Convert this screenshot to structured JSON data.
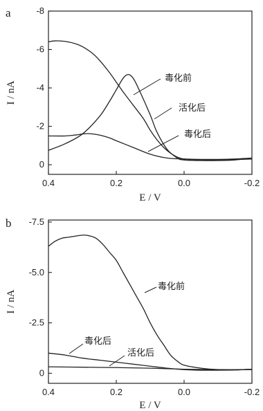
{
  "chart_data": [
    {
      "type": "line",
      "panel_label": "a",
      "xlabel": "E / V",
      "ylabel": "I / nA",
      "xlim": [
        0.4,
        -0.2
      ],
      "ylim": [
        0.5,
        -8
      ],
      "xticks": [
        0.4,
        0.2,
        0.0,
        -0.2
      ],
      "xtick_labels": [
        "0.4",
        "0.2",
        "0.0",
        "-0.2"
      ],
      "yticks": [
        -8,
        -6,
        -4,
        -2,
        0
      ],
      "ytick_labels": [
        "-8",
        "-6",
        "-4",
        "-2",
        "0"
      ],
      "series": [
        {
          "name": "毒化前",
          "x": [
            0.4,
            0.35,
            0.3,
            0.25,
            0.22,
            0.2,
            0.18,
            0.165,
            0.15,
            0.13,
            0.1,
            0.08,
            0.05,
            0.02,
            0.0,
            -0.05,
            -0.1,
            -0.15,
            -0.2
          ],
          "y": [
            -0.75,
            -1.1,
            -1.6,
            -2.5,
            -3.3,
            -3.9,
            -4.5,
            -4.7,
            -4.5,
            -3.8,
            -2.6,
            -1.7,
            -0.8,
            -0.35,
            -0.25,
            -0.22,
            -0.22,
            -0.25,
            -0.35
          ]
        },
        {
          "name": "活化后",
          "x": [
            0.4,
            0.38,
            0.35,
            0.32,
            0.3,
            0.27,
            0.25,
            0.22,
            0.2,
            0.18,
            0.15,
            0.12,
            0.1,
            0.08,
            0.06,
            0.04,
            0.02,
            0.0,
            -0.05,
            -0.1,
            -0.15,
            -0.2
          ],
          "y": [
            -6.4,
            -6.45,
            -6.42,
            -6.3,
            -6.15,
            -5.8,
            -5.45,
            -4.8,
            -4.3,
            -3.8,
            -3.1,
            -2.4,
            -1.8,
            -1.3,
            -0.9,
            -0.6,
            -0.4,
            -0.3,
            -0.25,
            -0.25,
            -0.27,
            -0.3
          ]
        },
        {
          "name": "毒化后",
          "x": [
            0.4,
            0.35,
            0.32,
            0.3,
            0.28,
            0.25,
            0.22,
            0.2,
            0.15,
            0.1,
            0.05,
            0.0,
            -0.05,
            -0.1,
            -0.15,
            -0.2
          ],
          "y": [
            -1.5,
            -1.5,
            -1.55,
            -1.6,
            -1.62,
            -1.55,
            -1.4,
            -1.25,
            -0.9,
            -0.55,
            -0.35,
            -0.3,
            -0.28,
            -0.28,
            -0.3,
            -0.35
          ]
        }
      ],
      "annotations": [
        "毒化前",
        "活化后",
        "毒化后"
      ]
    },
    {
      "type": "line",
      "panel_label": "b",
      "xlabel": "E / V",
      "ylabel": "I / nA",
      "xlim": [
        0.4,
        -0.2
      ],
      "ylim": [
        0.5,
        -7.6
      ],
      "xticks": [
        0.4,
        0.2,
        0.0,
        -0.2
      ],
      "xtick_labels": [
        "0.4",
        "0.2",
        "0.0",
        "-0.2"
      ],
      "yticks": [
        -7.5,
        -5.0,
        -2.5,
        0
      ],
      "ytick_labels": [
        "-7.5",
        "-5.0",
        "-2.5",
        "0"
      ],
      "series": [
        {
          "name": "毒化前",
          "x": [
            0.4,
            0.38,
            0.36,
            0.34,
            0.3,
            0.28,
            0.26,
            0.24,
            0.22,
            0.2,
            0.18,
            0.16,
            0.14,
            0.12,
            0.1,
            0.08,
            0.06,
            0.04,
            0.02,
            0.0,
            -0.05,
            -0.1,
            -0.15,
            -0.2
          ],
          "y": [
            -6.3,
            -6.55,
            -6.7,
            -6.75,
            -6.85,
            -6.82,
            -6.7,
            -6.4,
            -6.0,
            -5.6,
            -5.0,
            -4.4,
            -3.8,
            -3.2,
            -2.5,
            -1.9,
            -1.4,
            -0.9,
            -0.6,
            -0.4,
            -0.25,
            -0.18,
            -0.17,
            -0.2
          ]
        },
        {
          "name": "毒化后",
          "x": [
            0.4,
            0.35,
            0.3,
            0.25,
            0.2,
            0.15,
            0.1,
            0.05,
            0.0,
            -0.05,
            -0.1,
            -0.15,
            -0.2
          ],
          "y": [
            -1.0,
            -0.9,
            -0.75,
            -0.65,
            -0.55,
            -0.45,
            -0.35,
            -0.25,
            -0.18,
            -0.15,
            -0.15,
            -0.16,
            -0.2
          ]
        },
        {
          "name": "活化后",
          "x": [
            0.4,
            0.3,
            0.2,
            0.1,
            0.0,
            -0.1,
            -0.2
          ],
          "y": [
            -0.32,
            -0.3,
            -0.28,
            -0.25,
            -0.2,
            -0.18,
            -0.18
          ]
        }
      ],
      "annotations": [
        "毒化后",
        "活化后",
        "毒化前"
      ]
    }
  ]
}
